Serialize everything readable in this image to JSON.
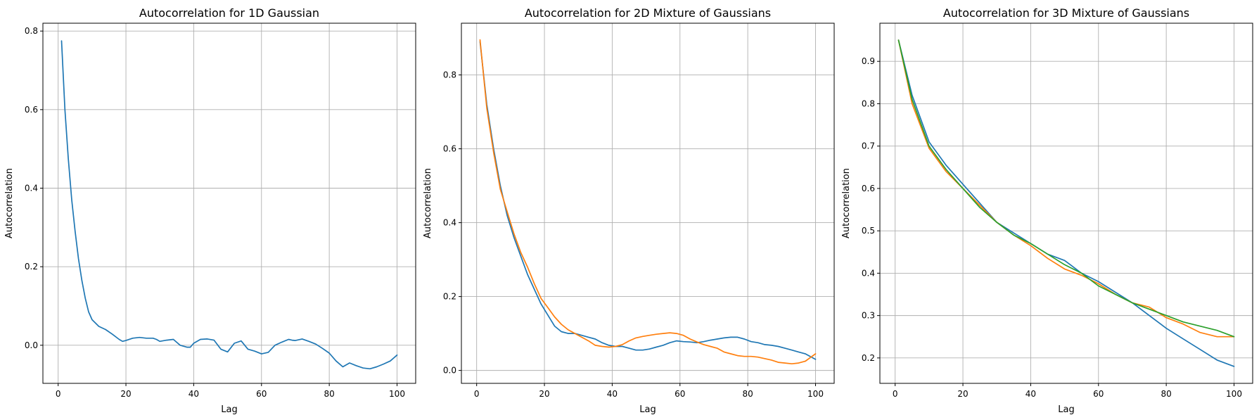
{
  "chart_data": [
    {
      "type": "line",
      "title": "Autocorrelation for 1D Gaussian",
      "xlabel": "Lag",
      "ylabel": "Autocorrelation",
      "xlim": [
        -4.5,
        105.5
      ],
      "ylim": [
        -0.097,
        0.82
      ],
      "xticks": [
        0,
        20,
        40,
        60,
        80,
        100
      ],
      "yticks": [
        0.0,
        0.2,
        0.4,
        0.6,
        0.8
      ],
      "ytick_labels": [
        "0.0",
        "0.2",
        "0.4",
        "0.6",
        "0.8"
      ],
      "grid": true,
      "series": [
        {
          "color": "#1f77b4",
          "x": [
            1,
            2,
            3,
            4,
            5,
            6,
            7,
            8,
            9,
            10,
            12,
            14,
            16,
            18,
            19,
            20,
            22,
            24,
            26,
            28,
            29,
            30,
            32,
            34,
            36,
            38,
            39,
            40,
            42,
            44,
            46,
            48,
            50,
            52,
            54,
            56,
            58,
            60,
            62,
            64,
            66,
            68,
            69,
            70,
            72,
            74,
            76,
            78,
            80,
            82,
            84,
            86,
            88,
            90,
            92,
            94,
            96,
            98,
            100
          ],
          "y": [
            0.775,
            0.6,
            0.475,
            0.37,
            0.29,
            0.22,
            0.165,
            0.12,
            0.085,
            0.065,
            0.048,
            0.04,
            0.028,
            0.015,
            0.01,
            0.012,
            0.018,
            0.02,
            0.018,
            0.018,
            0.015,
            0.01,
            0.013,
            0.015,
            0.0,
            -0.005,
            -0.005,
            0.005,
            0.015,
            0.016,
            0.013,
            -0.01,
            -0.017,
            0.005,
            0.011,
            -0.01,
            -0.015,
            -0.022,
            -0.018,
            0.0,
            0.008,
            0.015,
            0.013,
            0.012,
            0.016,
            0.01,
            0.003,
            -0.008,
            -0.02,
            -0.04,
            -0.055,
            -0.045,
            -0.052,
            -0.058,
            -0.06,
            -0.055,
            -0.048,
            -0.04,
            -0.025
          ]
        }
      ]
    },
    {
      "type": "line",
      "title": "Autocorrelation for 2D Mixture of Gaussians",
      "xlabel": "Lag",
      "ylabel": "Autocorrelation",
      "xlim": [
        -4.5,
        105.5
      ],
      "ylim": [
        -0.035,
        0.94
      ],
      "xticks": [
        0,
        20,
        40,
        60,
        80,
        100
      ],
      "yticks": [
        0.0,
        0.2,
        0.4,
        0.6,
        0.8
      ],
      "ytick_labels": [
        "0.0",
        "0.2",
        "0.4",
        "0.6",
        "0.8"
      ],
      "grid": true,
      "series": [
        {
          "color": "#1f77b4",
          "x": [
            1,
            3,
            5,
            7,
            9,
            11,
            13,
            15,
            17,
            19,
            21,
            23,
            25,
            27,
            29,
            31,
            33,
            35,
            37,
            39,
            41,
            43,
            45,
            47,
            49,
            51,
            53,
            55,
            57,
            59,
            61,
            63,
            65,
            67,
            69,
            71,
            73,
            75,
            77,
            79,
            81,
            83,
            85,
            87,
            89,
            91,
            93,
            95,
            97,
            100
          ],
          "y": [
            0.89,
            0.72,
            0.6,
            0.5,
            0.42,
            0.36,
            0.31,
            0.26,
            0.22,
            0.18,
            0.15,
            0.12,
            0.105,
            0.1,
            0.1,
            0.095,
            0.09,
            0.085,
            0.075,
            0.068,
            0.065,
            0.065,
            0.06,
            0.055,
            0.055,
            0.058,
            0.063,
            0.068,
            0.075,
            0.08,
            0.078,
            0.077,
            0.075,
            0.078,
            0.082,
            0.085,
            0.088,
            0.09,
            0.09,
            0.085,
            0.078,
            0.075,
            0.07,
            0.068,
            0.065,
            0.06,
            0.055,
            0.05,
            0.045,
            0.03
          ]
        },
        {
          "color": "#ff7f0e",
          "x": [
            1,
            3,
            5,
            7,
            9,
            11,
            13,
            15,
            17,
            19,
            21,
            23,
            25,
            27,
            29,
            31,
            33,
            35,
            37,
            39,
            41,
            43,
            45,
            47,
            49,
            51,
            53,
            55,
            57,
            59,
            61,
            63,
            65,
            67,
            69,
            71,
            73,
            75,
            77,
            79,
            81,
            83,
            85,
            87,
            89,
            91,
            93,
            95,
            97,
            100
          ],
          "y": [
            0.895,
            0.71,
            0.59,
            0.49,
            0.43,
            0.37,
            0.32,
            0.28,
            0.235,
            0.195,
            0.17,
            0.145,
            0.125,
            0.11,
            0.1,
            0.09,
            0.08,
            0.068,
            0.065,
            0.063,
            0.065,
            0.07,
            0.08,
            0.088,
            0.092,
            0.095,
            0.098,
            0.1,
            0.102,
            0.1,
            0.095,
            0.085,
            0.077,
            0.07,
            0.065,
            0.06,
            0.05,
            0.045,
            0.04,
            0.038,
            0.038,
            0.036,
            0.032,
            0.028,
            0.022,
            0.02,
            0.018,
            0.02,
            0.025,
            0.045
          ]
        }
      ]
    },
    {
      "type": "line",
      "title": "Autocorrelation for 3D Mixture of Gaussians",
      "xlabel": "Lag",
      "ylabel": "Autocorrelation",
      "xlim": [
        -4.5,
        105.5
      ],
      "ylim": [
        0.14,
        0.99
      ],
      "xticks": [
        0,
        20,
        40,
        60,
        80,
        100
      ],
      "yticks": [
        0.2,
        0.3,
        0.4,
        0.5,
        0.6,
        0.7,
        0.8,
        0.9
      ],
      "ytick_labels": [
        "0.2",
        "0.3",
        "0.4",
        "0.5",
        "0.6",
        "0.7",
        "0.8",
        "0.9"
      ],
      "grid": true,
      "series": [
        {
          "color": "#1f77b4",
          "x": [
            1,
            5,
            10,
            15,
            20,
            25,
            30,
            35,
            40,
            45,
            50,
            55,
            60,
            65,
            70,
            75,
            80,
            85,
            90,
            95,
            100
          ],
          "y": [
            0.95,
            0.82,
            0.71,
            0.655,
            0.61,
            0.565,
            0.52,
            0.495,
            0.47,
            0.445,
            0.43,
            0.4,
            0.38,
            0.355,
            0.33,
            0.3,
            0.27,
            0.245,
            0.22,
            0.195,
            0.18
          ]
        },
        {
          "color": "#ff7f0e",
          "x": [
            1,
            5,
            10,
            15,
            20,
            25,
            30,
            35,
            40,
            45,
            50,
            55,
            60,
            65,
            70,
            75,
            80,
            85,
            90,
            95,
            100
          ],
          "y": [
            0.95,
            0.8,
            0.695,
            0.64,
            0.6,
            0.56,
            0.52,
            0.49,
            0.465,
            0.435,
            0.41,
            0.395,
            0.375,
            0.35,
            0.33,
            0.32,
            0.295,
            0.28,
            0.26,
            0.25,
            0.25
          ]
        },
        {
          "color": "#2ca02c",
          "x": [
            1,
            5,
            10,
            15,
            20,
            25,
            30,
            35,
            40,
            45,
            50,
            55,
            60,
            65,
            70,
            75,
            80,
            85,
            90,
            95,
            100
          ],
          "y": [
            0.95,
            0.81,
            0.7,
            0.645,
            0.6,
            0.555,
            0.52,
            0.49,
            0.47,
            0.445,
            0.42,
            0.4,
            0.37,
            0.35,
            0.33,
            0.315,
            0.3,
            0.285,
            0.275,
            0.265,
            0.25
          ]
        }
      ]
    }
  ]
}
